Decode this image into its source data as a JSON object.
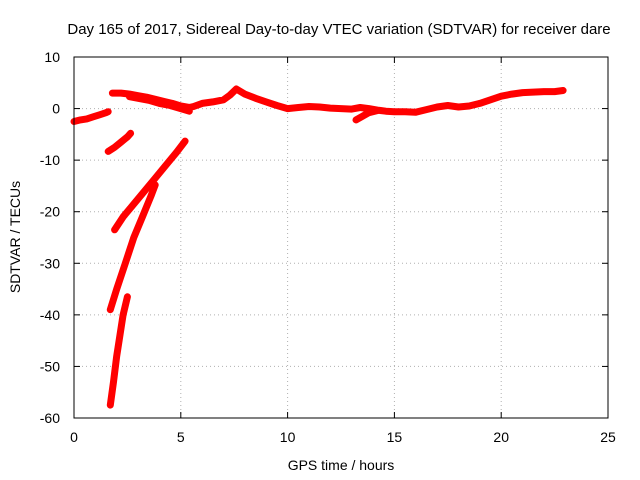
{
  "chart_data": {
    "type": "scatter",
    "title": "Day 165 of 2017, Sidereal Day-to-day VTEC variation (SDTVAR) for receiver dare",
    "xlabel": "GPS time / hours",
    "ylabel": "SDTVAR / TECUs",
    "xlim": [
      0,
      25
    ],
    "ylim": [
      -60,
      10
    ],
    "x_ticks": [
      "0",
      "5",
      "10",
      "15",
      "20",
      "25"
    ],
    "y_ticks": [
      "10",
      "0",
      "-10",
      "-20",
      "-30",
      "-40",
      "-50",
      "-60"
    ],
    "grid": true,
    "legend": "none",
    "marker": "+",
    "color": "#ff0000",
    "series": [
      {
        "points": [
          [
            0,
            -2.5
          ],
          [
            0.3,
            -2.2
          ],
          [
            0.6,
            -2.0
          ],
          [
            0.9,
            -1.6
          ],
          [
            1.2,
            -1.2
          ],
          [
            1.5,
            -0.8
          ],
          [
            1.6,
            -0.6
          ]
        ]
      },
      {
        "points": [
          [
            1.6,
            -8.3
          ],
          [
            1.9,
            -7.5
          ],
          [
            2.2,
            -6.5
          ],
          [
            2.5,
            -5.5
          ],
          [
            2.65,
            -4.8
          ]
        ]
      },
      {
        "points": [
          [
            1.8,
            3.0
          ],
          [
            2.2,
            3.0
          ],
          [
            2.6,
            2.8
          ],
          [
            3.0,
            2.5
          ],
          [
            3.4,
            2.2
          ],
          [
            3.8,
            1.8
          ],
          [
            4.2,
            1.4
          ],
          [
            4.6,
            1.0
          ],
          [
            5.0,
            0.5
          ],
          [
            5.4,
            0.2
          ],
          [
            5.6,
            0.4
          ],
          [
            6.0,
            1.0
          ],
          [
            6.5,
            1.3
          ],
          [
            7.0,
            1.7
          ],
          [
            7.3,
            2.6
          ],
          [
            7.6,
            3.8
          ],
          [
            8.0,
            2.8
          ],
          [
            8.5,
            2.0
          ],
          [
            9.0,
            1.3
          ],
          [
            9.5,
            0.6
          ],
          [
            10.0,
            0.0
          ],
          [
            10.5,
            0.2
          ],
          [
            11.0,
            0.4
          ],
          [
            11.5,
            0.3
          ],
          [
            12.0,
            0.1
          ],
          [
            12.5,
            0.0
          ],
          [
            13.0,
            -0.1
          ],
          [
            13.4,
            0.2
          ],
          [
            13.8,
            0.0
          ],
          [
            14.2,
            -0.3
          ],
          [
            14.6,
            -0.5
          ],
          [
            15.0,
            -0.6
          ],
          [
            15.5,
            -0.6
          ],
          [
            16.0,
            -0.7
          ],
          [
            16.5,
            -0.2
          ],
          [
            17.0,
            0.3
          ],
          [
            17.5,
            0.6
          ],
          [
            18.0,
            0.3
          ],
          [
            18.5,
            0.5
          ],
          [
            19.0,
            1.0
          ],
          [
            19.5,
            1.7
          ],
          [
            20.0,
            2.4
          ],
          [
            20.5,
            2.8
          ],
          [
            21.0,
            3.1
          ],
          [
            21.5,
            3.2
          ],
          [
            22.0,
            3.3
          ],
          [
            22.5,
            3.3
          ],
          [
            22.9,
            3.5
          ]
        ]
      },
      {
        "points": [
          [
            2.6,
            2.3
          ],
          [
            3.0,
            2.0
          ],
          [
            3.5,
            1.6
          ],
          [
            4.0,
            1.0
          ],
          [
            4.5,
            0.6
          ],
          [
            5.0,
            0.0
          ],
          [
            5.4,
            -0.5
          ]
        ]
      },
      {
        "points": [
          [
            13.2,
            -2.2
          ],
          [
            13.5,
            -1.5
          ],
          [
            13.8,
            -0.8
          ],
          [
            14.2,
            -0.4
          ]
        ]
      },
      {
        "points": [
          [
            1.9,
            -23.5
          ],
          [
            2.3,
            -21.0
          ],
          [
            2.8,
            -18.5
          ],
          [
            3.3,
            -16.0
          ],
          [
            3.8,
            -13.5
          ],
          [
            4.3,
            -11.0
          ],
          [
            4.8,
            -8.5
          ],
          [
            5.2,
            -6.3
          ]
        ]
      },
      {
        "points": [
          [
            1.7,
            -39.0
          ],
          [
            2.0,
            -35.0
          ],
          [
            2.4,
            -30.0
          ],
          [
            2.8,
            -25.0
          ],
          [
            3.2,
            -21.0
          ],
          [
            3.6,
            -17.0
          ],
          [
            3.8,
            -14.8
          ]
        ]
      },
      {
        "points": [
          [
            1.7,
            -57.5
          ],
          [
            1.85,
            -53.0
          ],
          [
            2.0,
            -48.0
          ],
          [
            2.15,
            -44.0
          ],
          [
            2.3,
            -40.0
          ],
          [
            2.5,
            -36.5
          ]
        ]
      }
    ]
  }
}
